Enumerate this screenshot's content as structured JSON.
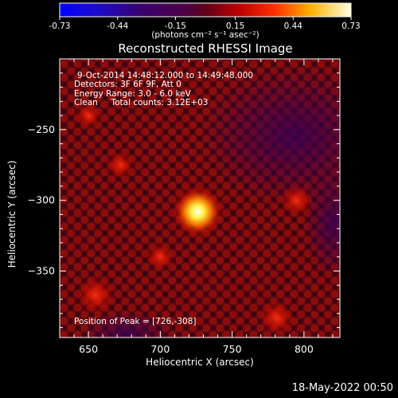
{
  "chart_data": {
    "type": "heatmap",
    "title": "Reconstructed RHESSI Image",
    "xlabel": "Heliocentric X (arcsec)",
    "ylabel": "Heliocentric Y (arcsec)",
    "xlim": [
      630,
      825
    ],
    "ylim": [
      -397,
      -200
    ],
    "xticks": [
      650,
      700,
      750,
      800
    ],
    "yticks": [
      -250,
      -300,
      -350
    ],
    "colorbar": {
      "ticks": [
        "-0.73",
        "-0.44",
        "-0.15",
        "0.15",
        "0.44",
        "0.73"
      ],
      "range": [
        -0.73,
        0.73
      ],
      "unit_label": "(photons cm⁻² s⁻¹ asec⁻²)"
    },
    "peak": [
      726,
      -308
    ],
    "blobs": [
      {
        "x": 726,
        "y": -308,
        "value": 0.73
      },
      {
        "x": 655,
        "y": -367,
        "value": 0.34
      },
      {
        "x": 781,
        "y": -383,
        "value": 0.29
      },
      {
        "x": 795,
        "y": -300,
        "value": 0.24
      },
      {
        "x": 700,
        "y": -340,
        "value": 0.17
      },
      {
        "x": 672,
        "y": -275,
        "value": 0.16
      },
      {
        "x": 650,
        "y": -240,
        "value": 0.14
      }
    ],
    "info_lines": [
      "9-Oct-2014 14:48:12.000 to 14:49:48.000",
      "Detectors: 3F 6F 9F, Att 0",
      "Energy Range: 3.0 - 6.0 keV",
      "Clean     Total counts: 3.12E+03"
    ],
    "peak_label": "Position of Peak = [726,-308]"
  },
  "footer": {
    "timestamp": "18-May-2022 00:50"
  }
}
